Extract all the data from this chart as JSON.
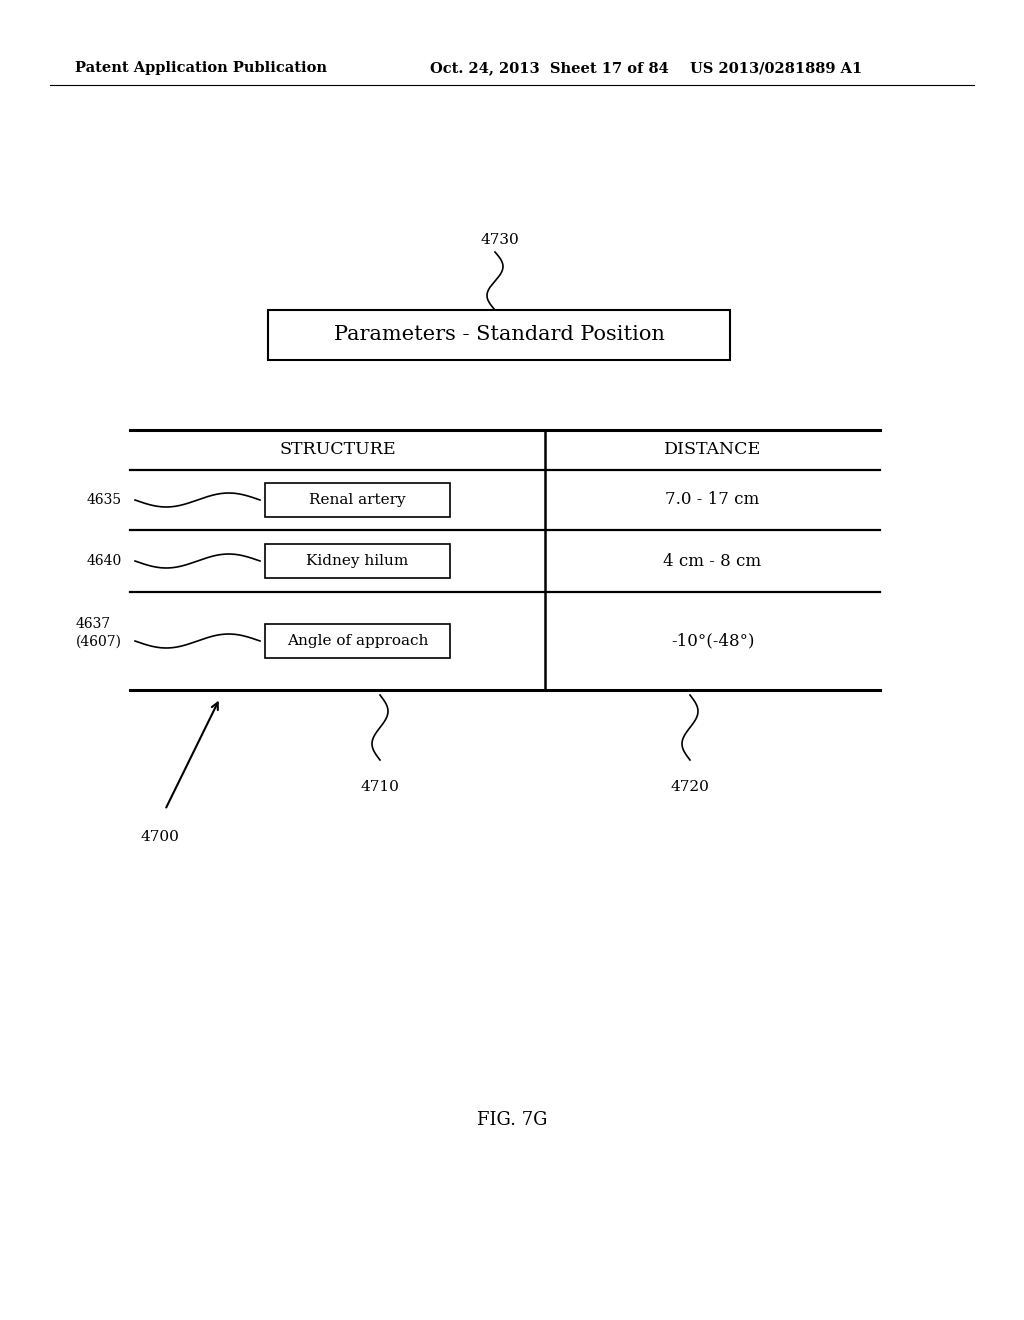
{
  "background_color": "#ffffff",
  "header_left": "Patent Application Publication",
  "header_mid": "Oct. 24, 2013  Sheet 17 of 84",
  "header_right": "US 2013/0281889 A1",
  "title_box_text": "Parameters - Standard Position",
  "col_header_structure": "STRUCTURE",
  "col_header_distance": "DISTANCE",
  "rows": [
    {
      "label": "Renal artery",
      "value": "7.0 - 17 cm",
      "ref": "4635"
    },
    {
      "label": "Kidney hilum",
      "value": "4 cm - 8 cm",
      "ref": "4640"
    },
    {
      "label": "Angle of approach",
      "value": "-10°(-48°)",
      "ref": "4637\n(4607)"
    }
  ],
  "ref_4730": "4730",
  "ref_4700": "4700",
  "ref_4710": "4710",
  "ref_4720": "4720",
  "fig_label": "FIG. 7G",
  "line_color": "#000000",
  "text_color": "#000000"
}
